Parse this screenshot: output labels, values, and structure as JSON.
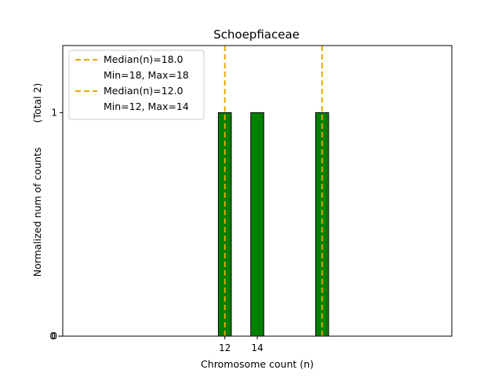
{
  "chart_data": {
    "type": "bar",
    "title": "Schoepfiaceae",
    "xlabel": "Chromosome count (n)",
    "ylabel": "Normalized num of counts",
    "ylabel_total": "(Total 2)",
    "xlim": [
      2,
      26
    ],
    "ylim": [
      0,
      1.3
    ],
    "x_ticks": [
      12,
      14
    ],
    "y_ticks": [
      0,
      1
    ],
    "y_ticks_duplicate": [
      0
    ],
    "bars": [
      {
        "x": 12,
        "value": 1
      },
      {
        "x": 14,
        "value": 1
      },
      {
        "x": 18,
        "value": 1
      }
    ],
    "baseline_xmax": 23.7,
    "bar_color": "#008000",
    "median_lines": [
      {
        "x": 12,
        "label": "Median(n)=12.0",
        "range_label": "Min=12, Max=14",
        "color": "#e6a800"
      },
      {
        "x": 18,
        "label": "Median(n)=18.0",
        "range_label": "Min=18, Max=18",
        "color": "#e6a800"
      }
    ],
    "legend": {
      "placement": "top-left",
      "entries": [
        {
          "label": "Median(n)=18.0",
          "style": "dashed-line",
          "color": "#e6a800"
        },
        {
          "label": "Min=18, Max=18",
          "style": "none"
        },
        {
          "label": "Median(n)=12.0",
          "style": "dashed-line",
          "color": "#e6a800"
        },
        {
          "label": "Min=12, Max=14",
          "style": "none"
        }
      ]
    },
    "grid": false
  }
}
